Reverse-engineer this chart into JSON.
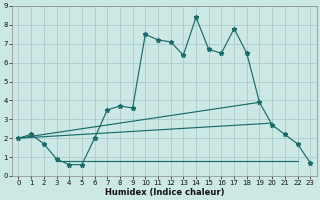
{
  "xlabel": "Humidex (Indice chaleur)",
  "bg_color": "#cce8e4",
  "grid_color": "#aacccc",
  "line_color": "#1a6b6b",
  "xlim": [
    -0.5,
    23.5
  ],
  "ylim": [
    0,
    9
  ],
  "xticks": [
    0,
    1,
    2,
    3,
    4,
    5,
    6,
    7,
    8,
    9,
    10,
    11,
    12,
    13,
    14,
    15,
    16,
    17,
    18,
    19,
    20,
    21,
    22,
    23
  ],
  "yticks": [
    0,
    1,
    2,
    3,
    4,
    5,
    6,
    7,
    8,
    9
  ],
  "series_main": {
    "x": [
      0,
      1,
      2,
      3,
      4,
      5,
      6,
      7,
      8,
      9,
      10,
      11,
      12,
      13,
      14,
      15,
      16,
      17,
      18,
      19,
      20,
      21,
      22,
      23
    ],
    "y": [
      2.0,
      2.2,
      1.7,
      0.9,
      0.6,
      0.6,
      2.0,
      3.5,
      3.7,
      3.6,
      7.5,
      7.2,
      7.1,
      6.4,
      8.4,
      6.7,
      6.5,
      7.8,
      6.5,
      3.9,
      2.7,
      2.2,
      1.7,
      0.7
    ]
  },
  "series_line1": {
    "x": [
      0,
      19
    ],
    "y": [
      2.0,
      3.9
    ]
  },
  "series_line2": {
    "x": [
      0,
      20
    ],
    "y": [
      2.0,
      2.8
    ]
  },
  "series_flat": {
    "x": [
      3,
      22
    ],
    "y": [
      0.8,
      0.8
    ]
  },
  "series_low": {
    "x": [
      3,
      4,
      5,
      6,
      7,
      8,
      9,
      10,
      11,
      12,
      13,
      14,
      15,
      16,
      17,
      18,
      19,
      20,
      21,
      22,
      23
    ],
    "y": [
      0.9,
      0.6,
      0.6,
      2.0,
      3.5,
      3.7,
      3.6,
      7.5,
      7.2,
      7.1,
      6.4,
      8.4,
      6.7,
      6.5,
      7.8,
      6.5,
      3.9,
      2.7,
      2.2,
      1.7,
      0.7
    ]
  }
}
